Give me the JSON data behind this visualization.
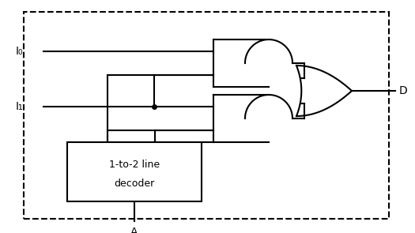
{
  "background": "#ffffff",
  "line_color": "#000000",
  "I0_label": "I₀",
  "I1_label": "I₁",
  "D_label": "D",
  "A_label": "A",
  "decoder_text_line1": "1-to-2 line",
  "decoder_text_line2": "decoder",
  "figsize": [
    5.25,
    2.95
  ],
  "dpi": 100
}
